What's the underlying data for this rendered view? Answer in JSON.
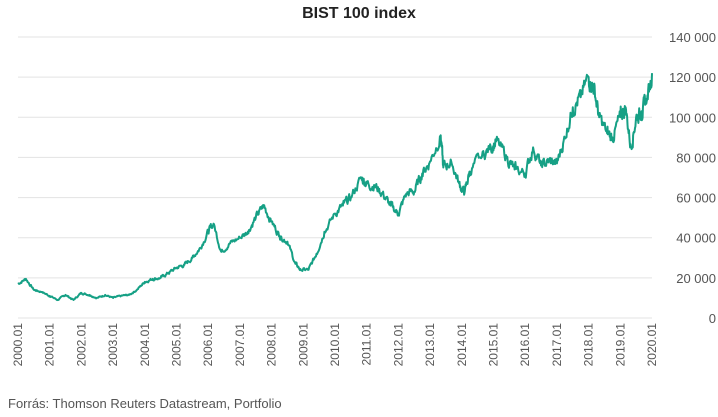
{
  "source": "Forrás: Thomson Reuters Datastream, Portfolio",
  "chart_data": {
    "type": "line",
    "title": "BIST 100 index",
    "xlabel": "",
    "ylabel": "",
    "ylim": [
      0,
      140000
    ],
    "y_ticks": [
      "0",
      "20 000",
      "40 000",
      "60 000",
      "80 000",
      "100 000",
      "120 000",
      "140 000"
    ],
    "x_ticks": [
      "2000.01",
      "2001.01",
      "2002.01",
      "2003.01",
      "2004.01",
      "2005.01",
      "2006.01",
      "2007.01",
      "2008.01",
      "2009.01",
      "2010.01",
      "2011.01",
      "2012.01",
      "2013.01",
      "2014.01",
      "2015.01",
      "2016.01",
      "2017.01",
      "2018.01",
      "2019.01",
      "2020.01"
    ],
    "grid": true,
    "legend": "none",
    "colors": {
      "line": "#16a085",
      "grid": "#e3e3e3"
    },
    "series": [
      {
        "points": [
          [
            "2000.01",
            17000
          ],
          [
            "2000.04",
            19500
          ],
          [
            "2000.07",
            14000
          ],
          [
            "2000.10",
            13000
          ],
          [
            "2001.01",
            11000
          ],
          [
            "2001.04",
            9000
          ],
          [
            "2001.07",
            11500
          ],
          [
            "2001.10",
            9000
          ],
          [
            "2002.01",
            12500
          ],
          [
            "2002.04",
            11500
          ],
          [
            "2002.07",
            10000
          ],
          [
            "2002.10",
            11500
          ],
          [
            "2003.01",
            10000
          ],
          [
            "2003.04",
            11000
          ],
          [
            "2003.07",
            11500
          ],
          [
            "2003.10",
            14000
          ],
          [
            "2004.01",
            18000
          ],
          [
            "2004.04",
            19500
          ],
          [
            "2004.07",
            20000
          ],
          [
            "2004.10",
            22500
          ],
          [
            "2005.01",
            25000
          ],
          [
            "2005.04",
            26500
          ],
          [
            "2005.07",
            30000
          ],
          [
            "2005.10",
            35000
          ],
          [
            "2006.01",
            43000
          ],
          [
            "2006.03",
            47000
          ],
          [
            "2006.06",
            33000
          ],
          [
            "2006.09",
            37000
          ],
          [
            "2007.01",
            40000
          ],
          [
            "2007.04",
            43000
          ],
          [
            "2007.07",
            50000
          ],
          [
            "2007.10",
            56000
          ],
          [
            "2008.01",
            48000
          ],
          [
            "2008.04",
            41000
          ],
          [
            "2008.07",
            38000
          ],
          [
            "2008.10",
            27000
          ],
          [
            "2008.12",
            24000
          ],
          [
            "2009.03",
            24000
          ],
          [
            "2009.06",
            32000
          ],
          [
            "2009.09",
            43000
          ],
          [
            "2010.01",
            52000
          ],
          [
            "2010.04",
            56000
          ],
          [
            "2010.07",
            60000
          ],
          [
            "2010.11",
            70000
          ],
          [
            "2011.01",
            67000
          ],
          [
            "2011.04",
            66000
          ],
          [
            "2011.07",
            62000
          ],
          [
            "2011.10",
            56000
          ],
          [
            "2012.01",
            52000
          ],
          [
            "2012.04",
            62000
          ],
          [
            "2012.07",
            63000
          ],
          [
            "2012.10",
            72000
          ],
          [
            "2013.01",
            78000
          ],
          [
            "2013.05",
            91000
          ],
          [
            "2013.06",
            75000
          ],
          [
            "2013.09",
            78000
          ],
          [
            "2013.12",
            67000
          ],
          [
            "2014.02",
            62000
          ],
          [
            "2014.04",
            73000
          ],
          [
            "2014.08",
            80000
          ],
          [
            "2014.12",
            85000
          ],
          [
            "2015.02",
            88000
          ],
          [
            "2015.06",
            80000
          ],
          [
            "2015.09",
            74000
          ],
          [
            "2016.01",
            72000
          ],
          [
            "2016.04",
            85000
          ],
          [
            "2016.07",
            76000
          ],
          [
            "2016.10",
            78000
          ],
          [
            "2017.01",
            77000
          ],
          [
            "2017.04",
            90000
          ],
          [
            "2017.07",
            105000
          ],
          [
            "2017.10",
            110000
          ],
          [
            "2018.01",
            120000
          ],
          [
            "2018.03",
            115000
          ],
          [
            "2018.05",
            100000
          ],
          [
            "2018.08",
            92000
          ],
          [
            "2018.10",
            90000
          ],
          [
            "2019.01",
            100000
          ],
          [
            "2019.03",
            105000
          ],
          [
            "2019.05",
            85000
          ],
          [
            "2019.07",
            100000
          ],
          [
            "2019.09",
            103000
          ],
          [
            "2019.11",
            108000
          ],
          [
            "2020.01",
            122000
          ]
        ]
      }
    ]
  }
}
